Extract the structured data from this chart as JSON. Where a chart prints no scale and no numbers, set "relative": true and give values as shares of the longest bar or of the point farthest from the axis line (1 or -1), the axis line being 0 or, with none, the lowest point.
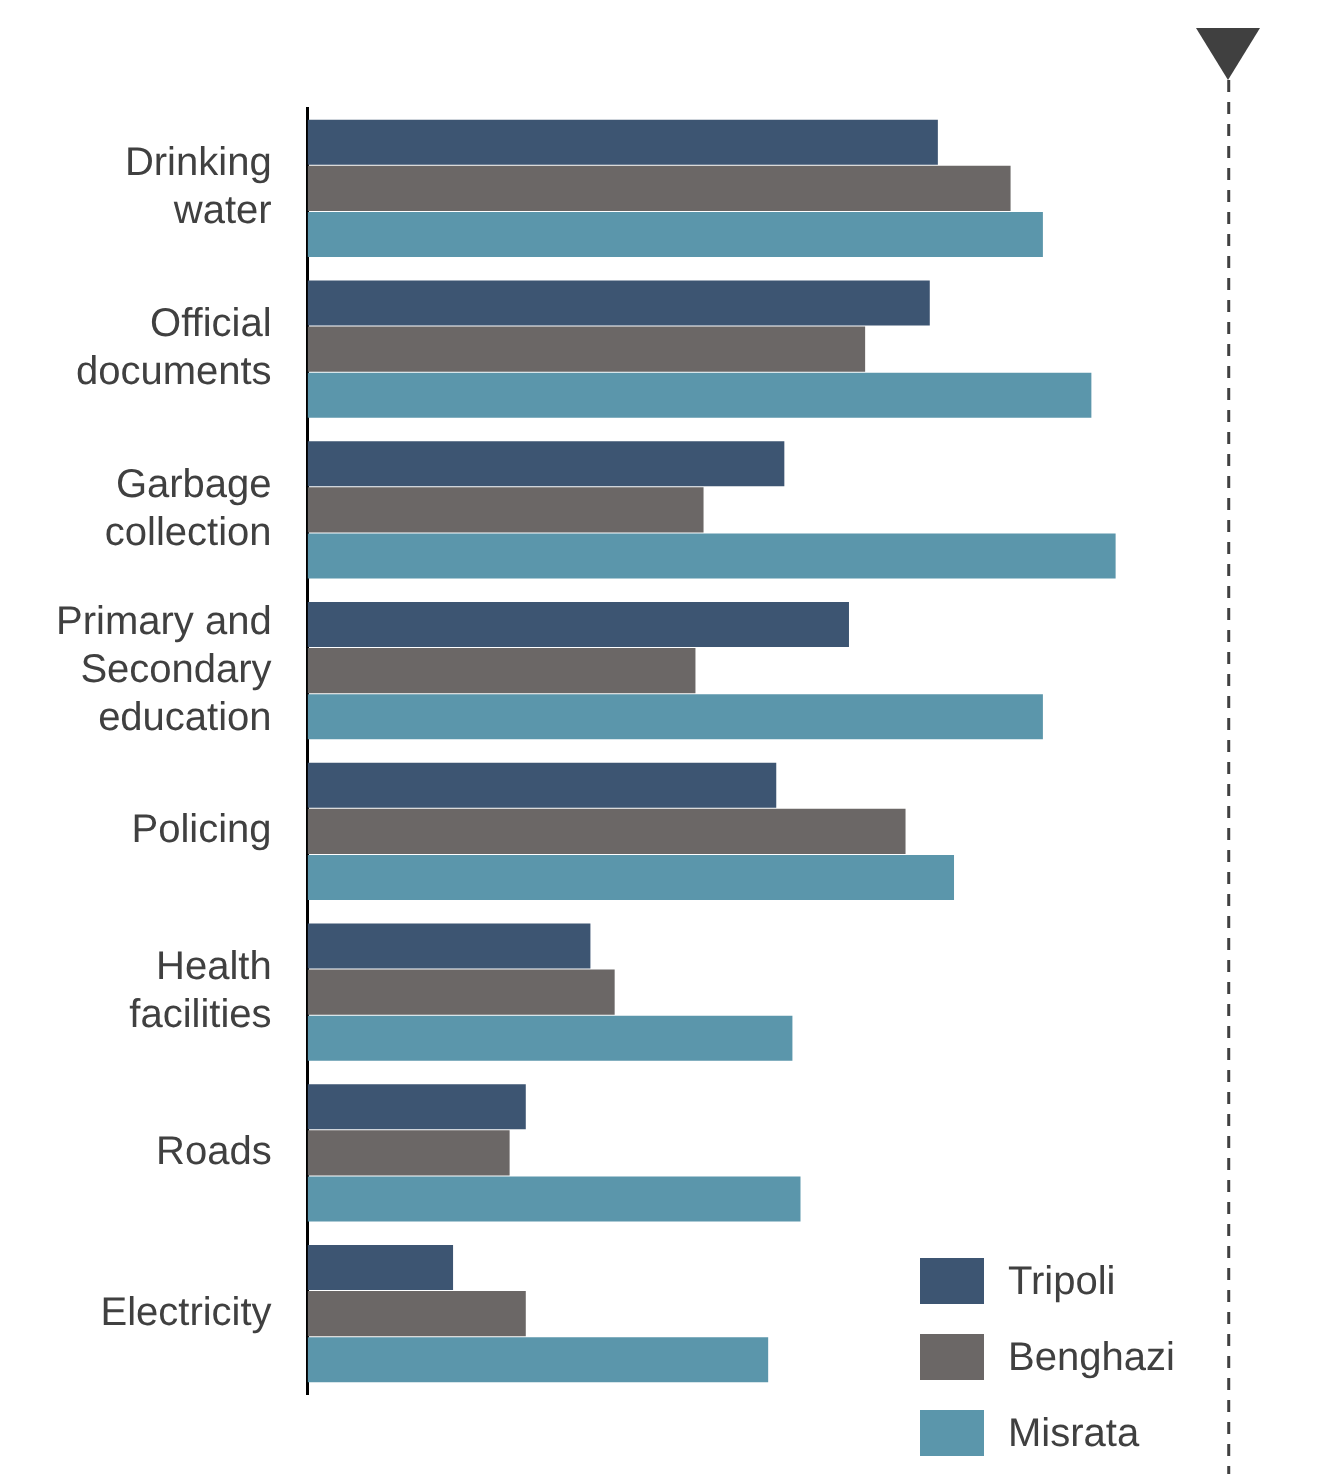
{
  "chart_data": {
    "type": "bar",
    "orientation": "horizontal",
    "relative": true,
    "legend": "bottom right",
    "categories": [
      "Drinking water",
      "Official documents",
      "Garbage collection",
      "Primary and Secondary education",
      "Policing",
      "Health facilities",
      "Roads",
      "Electricity"
    ],
    "series": [
      {
        "name": "Tripoli",
        "color": "#3d5572",
        "values": [
          0.78,
          0.77,
          0.59,
          0.67,
          0.58,
          0.35,
          0.27,
          0.18
        ]
      },
      {
        "name": "Benghazi",
        "color": "#6b6766",
        "values": [
          0.87,
          0.69,
          0.49,
          0.48,
          0.74,
          0.38,
          0.25,
          0.27
        ]
      },
      {
        "name": "Misrata",
        "color": "#5b96ab",
        "values": [
          0.91,
          0.97,
          1,
          0.91,
          0.8,
          0.6,
          0.61,
          0.57
        ]
      }
    ],
    "ref_lines": [
      {
        "axis": "x",
        "value": 1.14,
        "color": "#404040",
        "line_style": "dashed"
      }
    ]
  }
}
